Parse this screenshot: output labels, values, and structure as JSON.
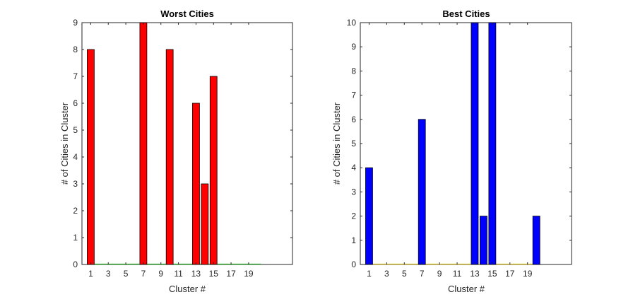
{
  "chart_data": [
    {
      "type": "bar",
      "title": "Worst Cities",
      "xlabel": "Cluster #",
      "ylabel": "# of Cities in Cluster",
      "x": [
        1,
        2,
        3,
        4,
        5,
        6,
        7,
        8,
        9,
        10,
        11,
        12,
        13,
        14,
        15,
        16,
        17,
        18,
        19,
        20
      ],
      "values": [
        8,
        0,
        0,
        0,
        0,
        0,
        9,
        0,
        0,
        8,
        0,
        0,
        6,
        3,
        7,
        0,
        0,
        0,
        0,
        0
      ],
      "xticks": [
        1,
        3,
        5,
        7,
        9,
        11,
        13,
        15,
        17,
        19
      ],
      "yticks": [
        0,
        1,
        2,
        3,
        4,
        5,
        6,
        7,
        8,
        9
      ],
      "xlim": [
        0,
        24
      ],
      "ylim": [
        0,
        9
      ],
      "bar_color": "#ff0000",
      "baseline_color": "#22aa22",
      "grid": false
    },
    {
      "type": "bar",
      "title": "Best Cities",
      "xlabel": "Cluster #",
      "ylabel": "# of Cities in Cluster",
      "x": [
        1,
        2,
        3,
        4,
        5,
        6,
        7,
        8,
        9,
        10,
        11,
        12,
        13,
        14,
        15,
        16,
        17,
        18,
        19,
        20
      ],
      "values": [
        4,
        0,
        0,
        0,
        0,
        0,
        6,
        0,
        0,
        0,
        0,
        0,
        10,
        2,
        10,
        0,
        0,
        0,
        0,
        2
      ],
      "xticks": [
        1,
        3,
        5,
        7,
        9,
        11,
        13,
        15,
        17,
        19
      ],
      "yticks": [
        0,
        1,
        2,
        3,
        4,
        5,
        6,
        7,
        8,
        9,
        10
      ],
      "xlim": [
        0,
        24
      ],
      "ylim": [
        0,
        10
      ],
      "bar_color": "#0000ff",
      "baseline_color": "#d8c020",
      "grid": false
    }
  ]
}
